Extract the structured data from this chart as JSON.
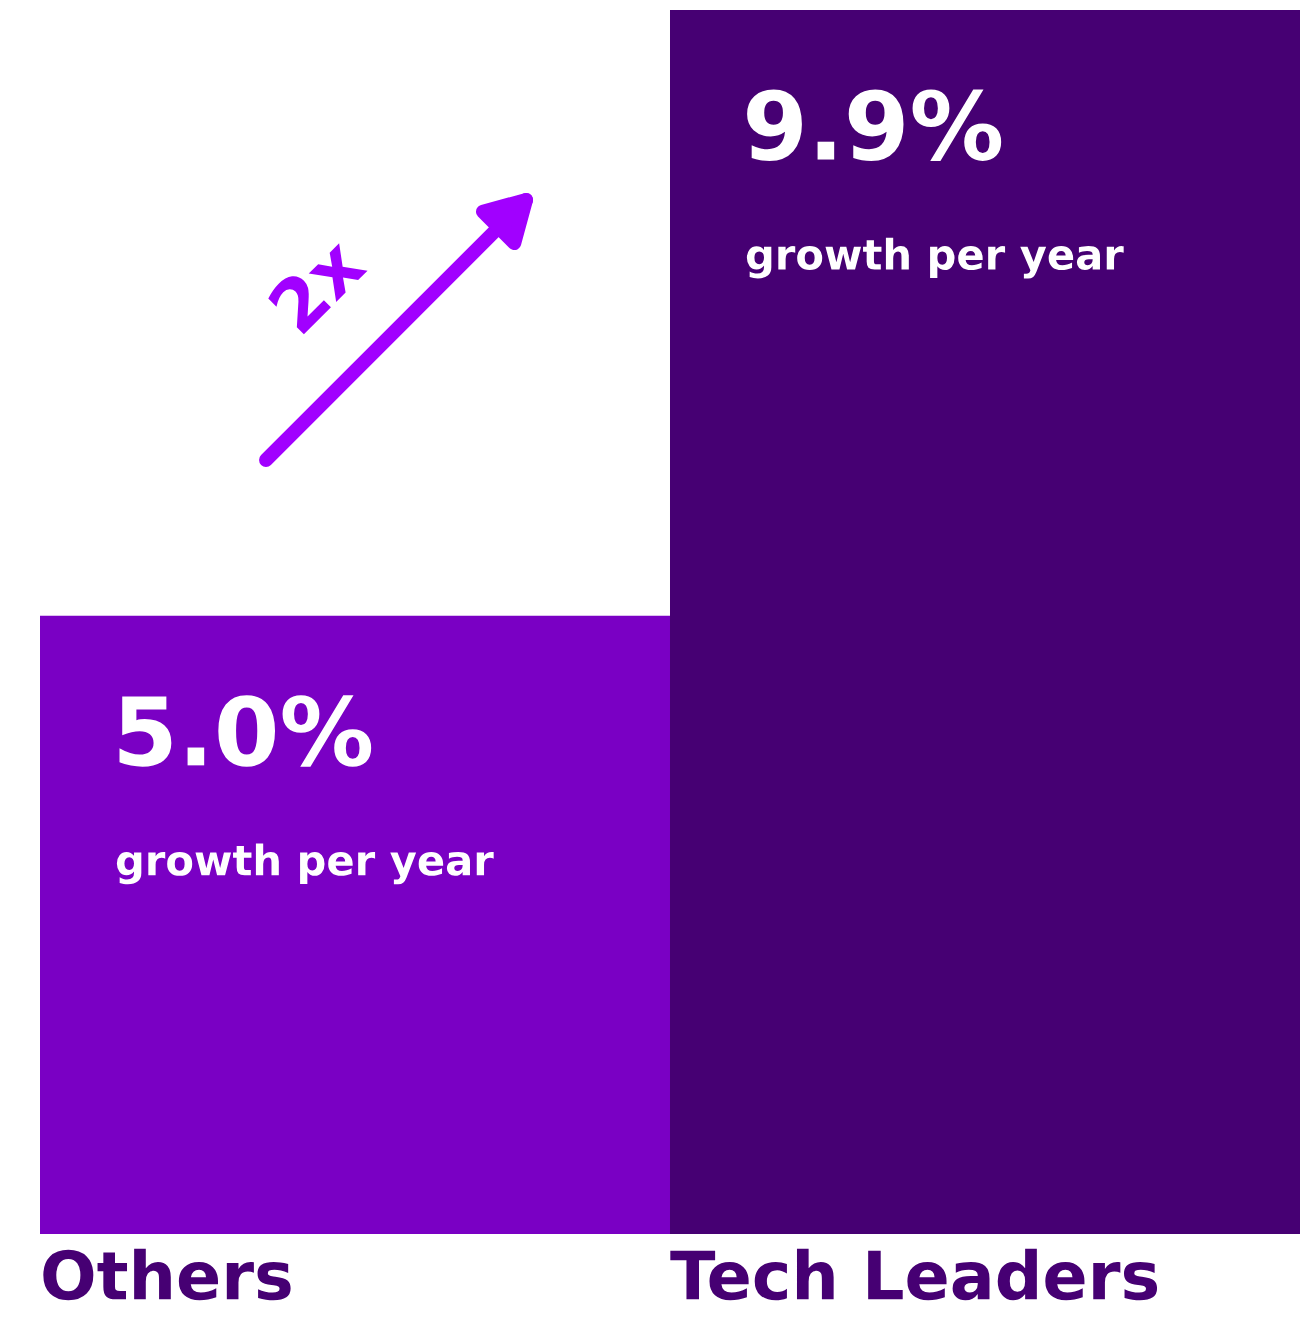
{
  "chart_data": {
    "type": "bar",
    "categories": [
      "Others",
      "Tech Leaders"
    ],
    "values": [
      5.0,
      9.9
    ],
    "colors": [
      "#7a00c4",
      "#460073"
    ],
    "value_labels": [
      "5.0%",
      "9.9%"
    ],
    "annotations": [
      "growth per year",
      "growth per year",
      "2x"
    ]
  }
}
